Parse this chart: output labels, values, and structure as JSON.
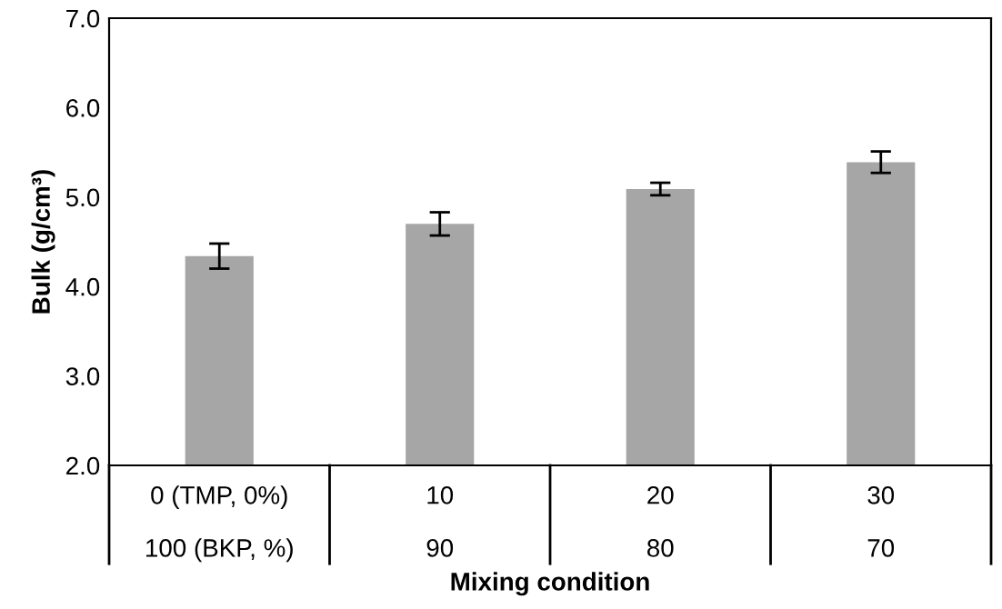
{
  "chart_data": {
    "type": "bar",
    "xlabel": "Mixing condition",
    "ylabel": "Bulk (g/cm³)",
    "categories": [
      "0 (TMP, 0%)\n100 (BKP, %)",
      "10\n90",
      "20\n80",
      "30\n70"
    ],
    "values": [
      4.34,
      4.7,
      5.09,
      5.39
    ],
    "errors": [
      0.14,
      0.13,
      0.07,
      0.12
    ],
    "color": "#a6a6a6",
    "ylim": [
      2,
      7
    ],
    "yticks": [
      {
        "value": 2,
        "label": "2.0"
      },
      {
        "value": 3,
        "label": "3.0"
      },
      {
        "value": 4,
        "label": "4.0"
      },
      {
        "value": 5,
        "label": "5.0"
      },
      {
        "value": 6,
        "label": "6.0"
      },
      {
        "value": 7,
        "label": "7.0"
      }
    ],
    "grid": false,
    "legend": false
  }
}
